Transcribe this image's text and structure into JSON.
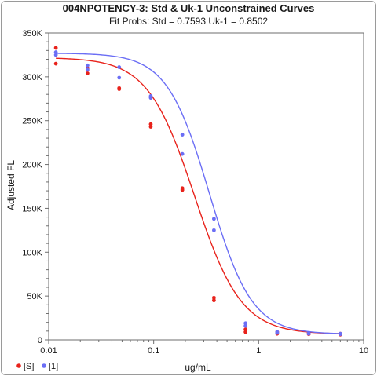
{
  "chart_data": {
    "type": "scatter",
    "title": "004NPOTENCY-3: Std & Uk-1  Unconstrained Curves",
    "subtitle": "Fit Probs: Std = 0.7593  Uk-1 = 0.8502",
    "xlabel": "ug/mL",
    "ylabel": "Adjusted FL",
    "x_scale": "log",
    "xlim": [
      0.01,
      10
    ],
    "ylim": [
      0,
      350000
    ],
    "x_ticks": [
      {
        "value": 0.01,
        "label": "0.01"
      },
      {
        "value": 0.1,
        "label": "0.1"
      },
      {
        "value": 1,
        "label": "1"
      },
      {
        "value": 10,
        "label": "10"
      }
    ],
    "y_ticks": [
      {
        "value": 0,
        "label": "0"
      },
      {
        "value": 50000,
        "label": "50K"
      },
      {
        "value": 100000,
        "label": "100K"
      },
      {
        "value": 150000,
        "label": "150K"
      },
      {
        "value": 200000,
        "label": "200K"
      },
      {
        "value": 250000,
        "label": "250K"
      },
      {
        "value": 300000,
        "label": "300K"
      },
      {
        "value": 350000,
        "label": "350K"
      }
    ],
    "grid": false,
    "legend_position": "bottom-left",
    "series": [
      {
        "name": "[S]",
        "color": "#e8221b",
        "points": [
          [
            0.0117,
            333000
          ],
          [
            0.0117,
            315000
          ],
          [
            0.0234,
            310000
          ],
          [
            0.0234,
            304000
          ],
          [
            0.0469,
            287000
          ],
          [
            0.0469,
            286000
          ],
          [
            0.0938,
            246000
          ],
          [
            0.0938,
            243000
          ],
          [
            0.1875,
            173000
          ],
          [
            0.1875,
            171000
          ],
          [
            0.375,
            48000
          ],
          [
            0.375,
            45000
          ],
          [
            0.75,
            12000
          ],
          [
            0.75,
            9000
          ],
          [
            1.5,
            9000
          ],
          [
            1.5,
            7000
          ],
          [
            3.0,
            7000
          ],
          [
            3.0,
            6500
          ],
          [
            6.0,
            7000
          ],
          [
            6.0,
            6000
          ]
        ],
        "fit": {
          "top": 322000,
          "bottom": 6500,
          "ec50": 0.245,
          "slope": 1.95
        }
      },
      {
        "name": "[1]",
        "color": "#6b6ef5",
        "points": [
          [
            0.0117,
            328000
          ],
          [
            0.0117,
            325000
          ],
          [
            0.0234,
            313000
          ],
          [
            0.0234,
            308000
          ],
          [
            0.0469,
            311000
          ],
          [
            0.0469,
            299000
          ],
          [
            0.0938,
            278000
          ],
          [
            0.0938,
            276000
          ],
          [
            0.1875,
            234000
          ],
          [
            0.1875,
            212000
          ],
          [
            0.375,
            138000
          ],
          [
            0.375,
            125000
          ],
          [
            0.75,
            19000
          ],
          [
            0.75,
            16000
          ],
          [
            1.5,
            9000
          ],
          [
            1.5,
            8000
          ],
          [
            3.0,
            7500
          ],
          [
            3.0,
            7000
          ],
          [
            6.0,
            7000
          ],
          [
            6.0,
            6500
          ]
        ],
        "fit": {
          "top": 327000,
          "bottom": 6500,
          "ec50": 0.34,
          "slope": 2.15
        }
      }
    ]
  }
}
